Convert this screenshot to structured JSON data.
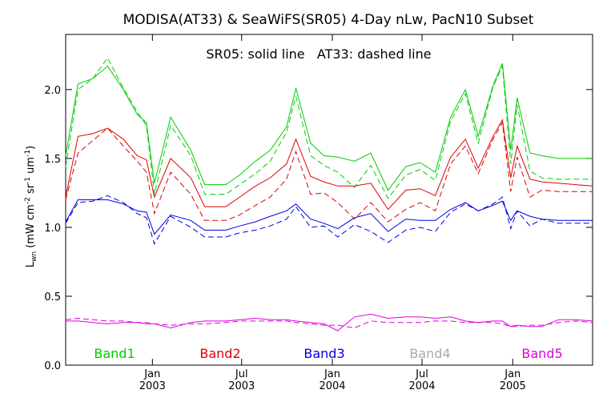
{
  "chart_data": {
    "type": "line",
    "title": "MODISA(AT33) & SeaWiFS(SR05) 4-Day nLw, PacN10 Subset",
    "annotation": "SR05: solid line   AT33: dashed line",
    "ylabel": {
      "main": "L",
      "sub": "wn",
      "units": " (mW cm",
      "sup1": "-2",
      "mid1": " sr",
      "sup2": "-1",
      "mid2": " um",
      "sup3": "-1",
      "end": ")"
    },
    "ylim": [
      0,
      2.4
    ],
    "yticks": [
      0.0,
      0.5,
      1.0,
      1.5,
      2.0
    ],
    "ytick_labels": [
      "0.0",
      "0.5",
      "1.0",
      "1.5",
      "2.0"
    ],
    "xlim": [
      "2002-07-09",
      "2005-06-12"
    ],
    "xticks": [
      {
        "date": "2003-01-01",
        "month": "Jan",
        "year": "2003"
      },
      {
        "date": "2003-07-01",
        "month": "Jul",
        "year": "2003"
      },
      {
        "date": "2004-01-01",
        "month": "Jan",
        "year": "2004"
      },
      {
        "date": "2004-07-01",
        "month": "Jul",
        "year": "2004"
      },
      {
        "date": "2005-01-01",
        "month": "Jan",
        "year": "2005"
      }
    ],
    "x": [
      "2002-07-09",
      "2002-08-03",
      "2002-09-02",
      "2002-10-02",
      "2002-11-03",
      "2002-12-01",
      "2002-12-20",
      "2003-01-05",
      "2003-02-07",
      "2003-03-20",
      "2003-04-17",
      "2003-05-30",
      "2003-06-27",
      "2003-07-29",
      "2003-08-28",
      "2003-09-30",
      "2003-10-19",
      "2003-11-18",
      "2003-12-15",
      "2004-01-12",
      "2004-02-15",
      "2004-03-19",
      "2004-04-23",
      "2004-05-29",
      "2004-06-27",
      "2004-07-28",
      "2004-08-28",
      "2004-09-27",
      "2004-10-23",
      "2004-11-22",
      "2004-12-11",
      "2004-12-28",
      "2005-01-10",
      "2005-02-05",
      "2005-03-01",
      "2005-04-04",
      "2005-05-09",
      "2005-06-12"
    ],
    "series": [
      {
        "name": "Band1",
        "sensor": "SR05",
        "style": "solid",
        "color": "#00cc00",
        "values": [
          1.52,
          2.04,
          2.08,
          2.17,
          2.0,
          1.82,
          1.76,
          1.32,
          1.8,
          1.56,
          1.31,
          1.31,
          1.38,
          1.48,
          1.56,
          1.73,
          2.01,
          1.61,
          1.52,
          1.51,
          1.48,
          1.54,
          1.27,
          1.44,
          1.47,
          1.4,
          1.8,
          2.0,
          1.66,
          2.03,
          2.19,
          1.56,
          1.94,
          1.54,
          1.52,
          1.5,
          1.5,
          1.5
        ]
      },
      {
        "name": "Band1",
        "sensor": "AT33",
        "style": "dashed",
        "color": "#00cc00",
        "values": [
          1.44,
          2.0,
          2.08,
          2.23,
          2.01,
          1.84,
          1.74,
          1.24,
          1.74,
          1.52,
          1.24,
          1.24,
          1.31,
          1.39,
          1.48,
          1.69,
          1.95,
          1.52,
          1.45,
          1.4,
          1.29,
          1.45,
          1.21,
          1.38,
          1.42,
          1.34,
          1.77,
          1.97,
          1.61,
          2.02,
          2.17,
          1.46,
          1.89,
          1.41,
          1.36,
          1.35,
          1.35,
          1.35
        ]
      },
      {
        "name": "Band2",
        "sensor": "SR05",
        "style": "solid",
        "color": "#e00000",
        "values": [
          1.22,
          1.66,
          1.68,
          1.72,
          1.64,
          1.52,
          1.49,
          1.22,
          1.5,
          1.36,
          1.15,
          1.15,
          1.22,
          1.3,
          1.36,
          1.46,
          1.64,
          1.37,
          1.33,
          1.3,
          1.3,
          1.32,
          1.13,
          1.27,
          1.28,
          1.23,
          1.51,
          1.64,
          1.43,
          1.66,
          1.78,
          1.36,
          1.59,
          1.35,
          1.33,
          1.32,
          1.31,
          1.3
        ]
      },
      {
        "name": "Band2",
        "sensor": "AT33",
        "style": "dashed",
        "color": "#e00000",
        "values": [
          1.2,
          1.54,
          1.63,
          1.72,
          1.59,
          1.48,
          1.4,
          1.1,
          1.4,
          1.24,
          1.05,
          1.05,
          1.09,
          1.16,
          1.22,
          1.35,
          1.55,
          1.24,
          1.25,
          1.18,
          1.06,
          1.18,
          1.04,
          1.13,
          1.18,
          1.12,
          1.46,
          1.59,
          1.39,
          1.64,
          1.76,
          1.26,
          1.51,
          1.22,
          1.27,
          1.26,
          1.26,
          1.26
        ]
      },
      {
        "name": "Band3",
        "sensor": "SR05",
        "style": "solid",
        "color": "#0000e0",
        "values": [
          1.04,
          1.2,
          1.2,
          1.2,
          1.17,
          1.12,
          1.11,
          0.95,
          1.09,
          1.05,
          0.98,
          0.98,
          1.01,
          1.04,
          1.08,
          1.12,
          1.17,
          1.06,
          1.03,
          0.99,
          1.07,
          1.1,
          0.97,
          1.06,
          1.05,
          1.05,
          1.13,
          1.18,
          1.12,
          1.16,
          1.19,
          1.05,
          1.12,
          1.08,
          1.06,
          1.05,
          1.05,
          1.05
        ]
      },
      {
        "name": "Band3",
        "sensor": "AT33",
        "style": "dashed",
        "color": "#0000e0",
        "values": [
          1.03,
          1.18,
          1.19,
          1.23,
          1.18,
          1.1,
          1.07,
          0.88,
          1.08,
          1.0,
          0.93,
          0.93,
          0.96,
          0.98,
          1.01,
          1.06,
          1.15,
          1.0,
          1.01,
          0.93,
          1.02,
          0.97,
          0.89,
          0.98,
          1.0,
          0.97,
          1.11,
          1.17,
          1.12,
          1.17,
          1.22,
          0.99,
          1.12,
          1.01,
          1.06,
          1.03,
          1.03,
          1.03
        ]
      },
      {
        "name": "Band5",
        "sensor": "SR05",
        "style": "solid",
        "color": "#dd00dd",
        "values": [
          0.32,
          0.32,
          0.31,
          0.3,
          0.31,
          0.31,
          0.3,
          0.3,
          0.27,
          0.31,
          0.32,
          0.32,
          0.33,
          0.34,
          0.33,
          0.33,
          0.32,
          0.31,
          0.3,
          0.25,
          0.35,
          0.37,
          0.34,
          0.35,
          0.35,
          0.34,
          0.35,
          0.32,
          0.31,
          0.32,
          0.32,
          0.28,
          0.29,
          0.28,
          0.28,
          0.33,
          0.33,
          0.32
        ]
      },
      {
        "name": "Band5",
        "sensor": "AT33",
        "style": "dashed",
        "color": "#dd00dd",
        "values": [
          0.33,
          0.34,
          0.33,
          0.32,
          0.32,
          0.31,
          0.31,
          0.3,
          0.29,
          0.3,
          0.3,
          0.31,
          0.32,
          0.32,
          0.32,
          0.32,
          0.31,
          0.3,
          0.29,
          0.29,
          0.27,
          0.32,
          0.31,
          0.31,
          0.31,
          0.32,
          0.32,
          0.31,
          0.31,
          0.31,
          0.3,
          0.28,
          0.28,
          0.29,
          0.29,
          0.31,
          0.32,
          0.31
        ]
      }
    ],
    "legend": [
      {
        "label": "Band1",
        "color": "#00cc00"
      },
      {
        "label": "Band2",
        "color": "#e00000"
      },
      {
        "label": "Band3",
        "color": "#0000e0"
      },
      {
        "label": "Band4",
        "color": "#aaaaaa"
      },
      {
        "label": "Band5",
        "color": "#dd00dd"
      }
    ],
    "grid": false,
    "legend_placement": "bottom inside plot"
  }
}
